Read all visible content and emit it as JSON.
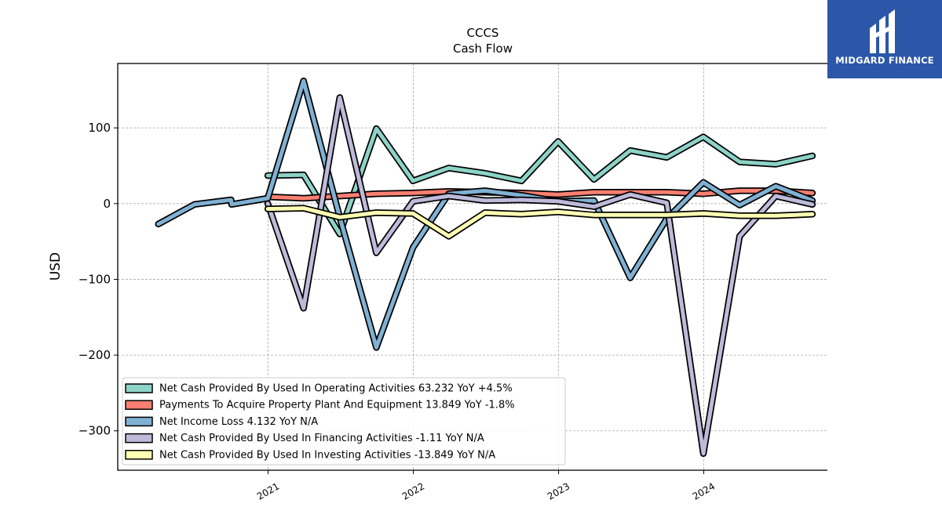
{
  "brand": {
    "name": "MIDGARD FINANCE"
  },
  "chart_data": {
    "type": "line",
    "title": "CCCS",
    "subtitle": "Cash Flow",
    "ylabel": "USD",
    "xlabel": "",
    "ylim": [
      -352,
      185
    ],
    "xlim": [
      "2019-12-20",
      "2024-12-26"
    ],
    "yticks": [
      100,
      0,
      -100,
      -200,
      -300
    ],
    "ytick_labels": [
      "100",
      "0",
      "−100",
      "−200",
      "−300"
    ],
    "xticks": [
      "2021-01-01",
      "2022-01-01",
      "2023-01-01",
      "2024-01-01"
    ],
    "xtick_labels": [
      "2021",
      "2022",
      "2023",
      "2024"
    ],
    "grid": true,
    "legend_position": "lower-left",
    "series": [
      {
        "name": "Net Cash Provided By Used In Operating Activities",
        "legend": "Net Cash Provided By Used In Operating Activities  63.232 YoY +4.5%",
        "color": "#8dd3c7",
        "x": [
          "2020-12-31",
          "2021-03-31",
          "2021-06-30",
          "2021-09-30",
          "2021-12-31",
          "2022-03-31",
          "2022-06-30",
          "2022-09-30",
          "2022-12-31",
          "2023-03-31",
          "2023-06-30",
          "2023-09-30",
          "2023-12-31",
          "2024-03-31",
          "2024-06-30",
          "2024-09-30"
        ],
        "y": [
          37,
          38,
          -40,
          99,
          30,
          47,
          40,
          30,
          82,
          32,
          70,
          61,
          88,
          55,
          52,
          63
        ]
      },
      {
        "name": "Payments To Acquire Property Plant And Equipment",
        "legend": "Payments To Acquire Property Plant And Equipment  13.849 YoY -1.8%",
        "color": "#fb8072",
        "x": [
          "2020-12-31",
          "2021-03-31",
          "2021-06-30",
          "2021-09-30",
          "2021-12-31",
          "2022-03-31",
          "2022-06-30",
          "2022-09-30",
          "2022-12-31",
          "2023-03-31",
          "2023-06-30",
          "2023-09-30",
          "2023-12-31",
          "2024-03-31",
          "2024-06-30",
          "2024-09-30"
        ],
        "y": [
          9,
          7,
          10,
          13,
          14,
          16,
          15,
          14,
          12,
          15,
          15,
          15,
          13,
          17,
          17,
          14
        ]
      },
      {
        "name": "Net Income Loss",
        "legend": "Net Income Loss  4.132 YoY N/A",
        "color": "#80b1d3",
        "x": [
          "2020-03-31",
          "2020-06-30",
          "2020-09-30",
          "2020-10-01",
          "2020-12-31",
          "2021-03-31",
          "2021-06-30",
          "2021-09-30",
          "2021-12-31",
          "2022-03-31",
          "2022-06-30",
          "2022-09-30",
          "2022-12-31",
          "2023-03-31",
          "2023-06-30",
          "2023-09-30",
          "2023-12-31",
          "2024-03-31",
          "2024-06-30",
          "2024-09-30"
        ],
        "y": [
          -27,
          -1,
          5,
          -1,
          7,
          162,
          -18,
          -190,
          -58,
          13,
          17,
          11,
          3,
          4,
          -98,
          -20,
          28,
          -2,
          23,
          4
        ]
      },
      {
        "name": "Net Cash Provided By Used In Financing Activities",
        "legend": "Net Cash Provided By Used In Financing Activities  -1.11 YoY N/A",
        "color": "#bebada",
        "x": [
          "2020-12-31",
          "2021-03-31",
          "2021-06-30",
          "2021-09-30",
          "2021-12-31",
          "2022-03-31",
          "2022-06-30",
          "2022-09-30",
          "2022-12-31",
          "2023-03-31",
          "2023-06-30",
          "2023-09-30",
          "2023-12-31",
          "2024-03-31",
          "2024-06-30",
          "2024-09-30"
        ],
        "y": [
          0,
          -138,
          140,
          -65,
          3,
          10,
          4,
          5,
          3,
          -4,
          12,
          1,
          -330,
          -43,
          10,
          -1
        ]
      },
      {
        "name": "Net Cash Provided By Used In Investing Activities",
        "legend": "Net Cash Provided By Used In Investing Activities  -13.849 YoY N/A",
        "color": "#ffffb3",
        "x": [
          "2020-12-31",
          "2021-03-31",
          "2021-06-30",
          "2021-09-30",
          "2021-12-31",
          "2022-03-31",
          "2022-06-30",
          "2022-09-30",
          "2022-12-31",
          "2023-03-31",
          "2023-06-30",
          "2023-09-30",
          "2023-12-31",
          "2024-03-31",
          "2024-06-30",
          "2024-09-30"
        ],
        "y": [
          -7,
          -6,
          -18,
          -12,
          -13,
          -43,
          -12,
          -14,
          -11,
          -15,
          -15,
          -15,
          -13,
          -16,
          -16,
          -14
        ]
      }
    ]
  }
}
